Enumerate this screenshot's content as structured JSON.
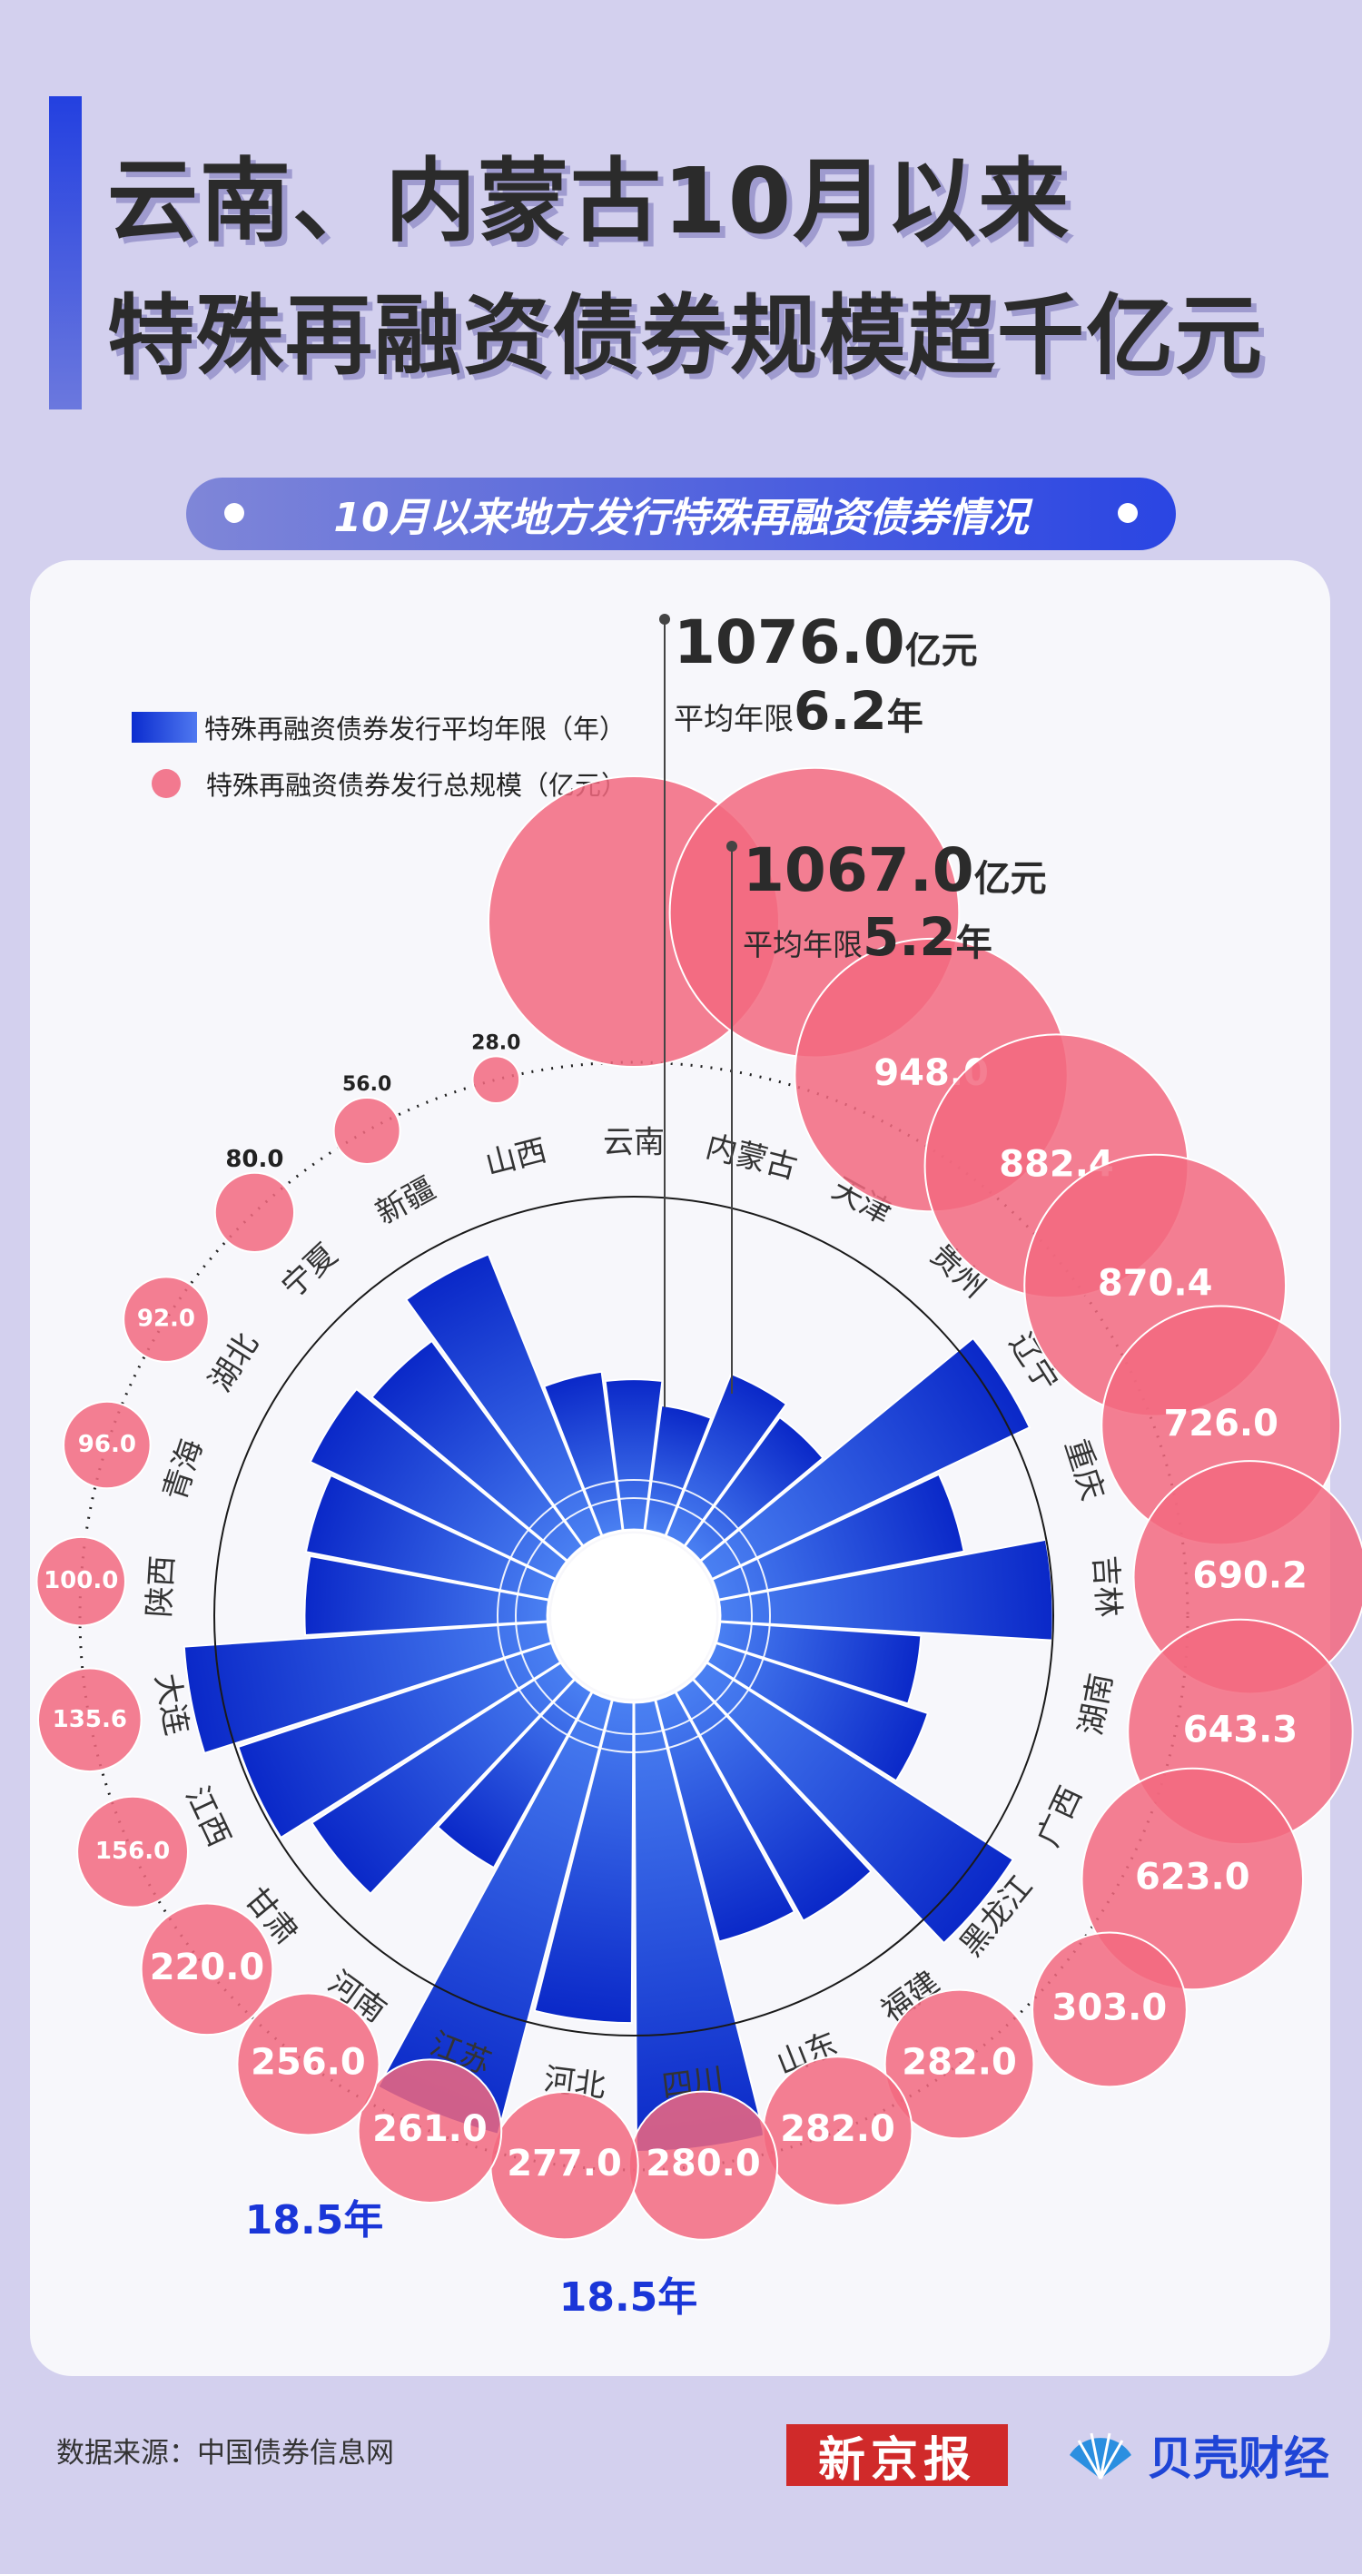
{
  "header": {
    "title_line1": "云南、内蒙古10月以来",
    "title_line2": "特殊再融资债券规模超千亿元",
    "subtitle": "10月以来地方发行特殊再融资债券情况"
  },
  "legend": {
    "bar_label": "特殊再融资债券发行平均年限（年）",
    "bubble_label": "特殊再融资债券发行总规模（亿元）"
  },
  "callouts": {
    "yunnan_amount": "1076.0",
    "yunnan_years": "6.2",
    "neimenggu_amount": "1067.0",
    "neimenggu_years": "5.2",
    "amount_unit": "亿元",
    "years_prefix": "平均年限",
    "years_unit": "年",
    "jiangsu_years_label": "18.5年",
    "sichuan_years_label": "18.5年"
  },
  "colors": {
    "bar_dark": "#0a28c8",
    "bar_light": "#4a80f2",
    "bubble": "#f2687f",
    "background": "#d3d0ee",
    "card": "#f7f7fb"
  },
  "chart_data": {
    "type": "radial-bar-bubble",
    "categories": [
      "云南",
      "内蒙古",
      "天津",
      "贵州",
      "辽宁",
      "重庆",
      "吉林",
      "湖南",
      "广西",
      "黑龙江",
      "福建",
      "山东",
      "四川",
      "河北",
      "江苏",
      "河南",
      "甘肃",
      "江西",
      "大连",
      "陕西",
      "青海",
      "湖北",
      "宁夏",
      "新疆",
      "山西"
    ],
    "series": [
      {
        "name": "特殊再融资债券发行平均年限（年）",
        "unit": "年",
        "values": [
          6.2,
          5.2,
          7.2,
          6.6,
          14.5,
          10.3,
          13.7,
          8.3,
          9.2,
          15.0,
          10.8,
          10.3,
          18.5,
          13.2,
          18.5,
          8.3,
          12.2,
          13.6,
          15.0,
          10.0,
          10.2,
          11.2,
          10.5,
          12.5,
          6.6
        ]
      },
      {
        "name": "特殊再融资债券发行总规模（亿元）",
        "unit": "亿元",
        "values": [
          1076.0,
          1067.0,
          948.0,
          882.4,
          870.4,
          726.0,
          690.2,
          643.3,
          623.0,
          303.0,
          282.0,
          282.0,
          280.0,
          277.0,
          261.0,
          256.0,
          220.0,
          156.0,
          135.6,
          100.0,
          96.0,
          92.0,
          80.0,
          56.0,
          28.0
        ]
      }
    ],
    "bubble_labels": [
      "",
      "",
      "948.0",
      "882.4",
      "870.4",
      "726.0",
      "690.2",
      "643.3",
      "623.0",
      "303.0",
      "282.0",
      "282.0",
      "280.0",
      "277.0",
      "261.0",
      "256.0",
      "220.0",
      "156.0",
      "135.6",
      "100.0",
      "96.0",
      "92.0",
      "80.0",
      "56.0",
      "28.0"
    ]
  },
  "footer": {
    "source": "数据来源：中国债券信息网",
    "logo_xjb": "新京报",
    "logo_beike": "贝壳财经"
  }
}
